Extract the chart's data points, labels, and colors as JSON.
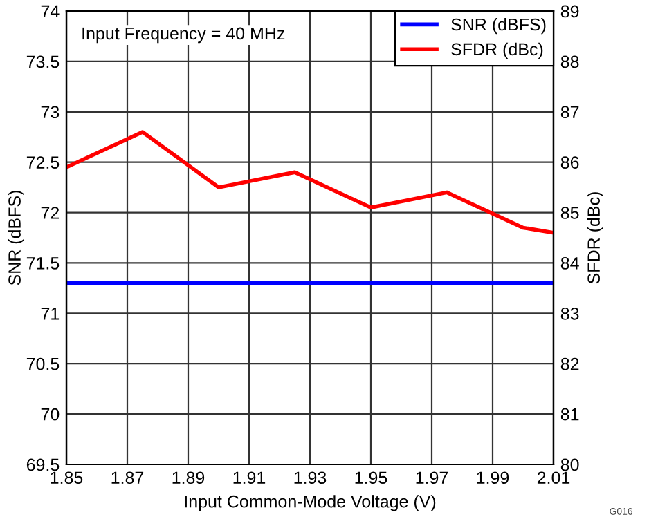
{
  "chart_data": {
    "type": "line",
    "x": [
      1.85,
      1.875,
      1.9,
      1.925,
      1.95,
      1.975,
      2.0,
      2.01
    ],
    "series": [
      {
        "name": "SNR (dBFS)",
        "color": "#0000ff",
        "values": [
          71.3,
          71.3,
          71.3,
          71.3,
          71.3,
          71.3,
          71.3,
          71.3
        ]
      },
      {
        "name": "SFDR (dBc)",
        "color": "#ff0000",
        "axis": "y2",
        "values": [
          85.9,
          86.6,
          85.5,
          85.8,
          85.1,
          85.4,
          84.7,
          84.6
        ]
      }
    ],
    "xlabel": "Input Common-Mode Voltage (V)",
    "ylabel": "SNR (dBFS)",
    "y2label": "SFDR (dBc)",
    "xlim": [
      1.85,
      2.01
    ],
    "xticks": [
      1.85,
      1.87,
      1.89,
      1.91,
      1.93,
      1.95,
      1.97,
      1.99,
      2.01
    ],
    "ylim": [
      69.5,
      74
    ],
    "yticks": [
      69.5,
      70,
      70.5,
      71,
      71.5,
      72,
      72.5,
      73,
      73.5,
      74
    ],
    "y2lim": [
      80,
      89
    ],
    "y2ticks": [
      80,
      81,
      82,
      83,
      84,
      85,
      86,
      87,
      88,
      89
    ],
    "annotations": [
      "Input Frequency = 40 MHz",
      "G016"
    ],
    "grid": true,
    "legend": "top right",
    "marker": "none",
    "line_style": "solid"
  }
}
